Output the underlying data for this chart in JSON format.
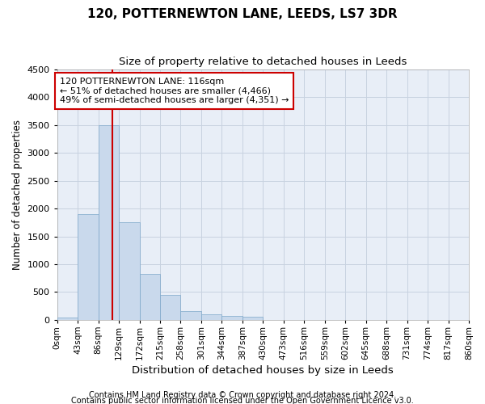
{
  "title": "120, POTTERNEWTON LANE, LEEDS, LS7 3DR",
  "subtitle": "Size of property relative to detached houses in Leeds",
  "xlabel": "Distribution of detached houses by size in Leeds",
  "ylabel": "Number of detached properties",
  "bar_color": "#c9d9ec",
  "bar_edge_color": "#7da7c9",
  "grid_color": "#c8d2e0",
  "bg_color": "#e8eef7",
  "vline_value": 116,
  "vline_color": "#cc0000",
  "annotation_text": "120 POTTERNEWTON LANE: 116sqm\n← 51% of detached houses are smaller (4,466)\n49% of semi-detached houses are larger (4,351) →",
  "annotation_box_color": "#ffffff",
  "annotation_box_edge": "#cc0000",
  "ylim": [
    0,
    4500
  ],
  "yticks": [
    0,
    500,
    1000,
    1500,
    2000,
    2500,
    3000,
    3500,
    4000,
    4500
  ],
  "bin_edges": [
    0,
    43,
    86,
    129,
    172,
    215,
    258,
    301,
    344,
    387,
    430,
    473,
    516,
    559,
    602,
    645,
    688,
    731,
    774,
    817,
    860
  ],
  "bin_labels": [
    "0sqm",
    "43sqm",
    "86sqm",
    "129sqm",
    "172sqm",
    "215sqm",
    "258sqm",
    "301sqm",
    "344sqm",
    "387sqm",
    "430sqm",
    "473sqm",
    "516sqm",
    "559sqm",
    "602sqm",
    "645sqm",
    "688sqm",
    "731sqm",
    "774sqm",
    "817sqm",
    "860sqm"
  ],
  "bar_heights": [
    50,
    1900,
    3500,
    1750,
    830,
    450,
    160,
    95,
    70,
    60,
    5,
    0,
    0,
    0,
    0,
    0,
    0,
    0,
    0,
    0
  ],
  "footer_line1": "Contains HM Land Registry data © Crown copyright and database right 2024.",
  "footer_line2": "Contains public sector information licensed under the Open Government Licence v3.0."
}
